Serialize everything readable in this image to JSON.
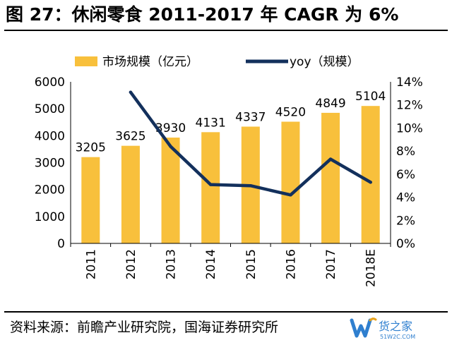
{
  "title": "图 27：休闲零食 2011-2017 年 CAGR 为 6%",
  "source": "资料来源：前瞻产业研究院，国海证券研究所",
  "watermark": {
    "brand": "货之家",
    "site": "51W2C.COM"
  },
  "colors": {
    "bar": "#F8C03C",
    "line": "#13305C",
    "text": "#000000",
    "watermark": "#2F7FCF",
    "watermark_accent": "#E8A21A"
  },
  "chart_data": {
    "type": "bar",
    "categories": [
      "2011",
      "2012",
      "2013",
      "2014",
      "2015",
      "2016",
      "2017",
      "2018E"
    ],
    "series": [
      {
        "name": "市场规模（亿元）",
        "type": "bar",
        "axis": "left",
        "values": [
          3205,
          3625,
          3930,
          4131,
          4337,
          4520,
          4849,
          5104
        ]
      },
      {
        "name": "yoy（规模）",
        "type": "line",
        "axis": "right",
        "values": [
          null,
          13.1,
          8.4,
          5.1,
          5.0,
          4.2,
          7.3,
          5.3
        ]
      }
    ],
    "data_labels": [
      "3205",
      "3625",
      "3930",
      "4131",
      "4337",
      "4520",
      "4849",
      "5104"
    ],
    "y_left": {
      "min": 0,
      "max": 6000,
      "ticks": [
        "0",
        "1000",
        "2000",
        "3000",
        "4000",
        "5000",
        "6000"
      ]
    },
    "y_right": {
      "min": 0,
      "max": 14,
      "ticks": [
        "0%",
        "2%",
        "4%",
        "6%",
        "8%",
        "10%",
        "12%",
        "14%"
      ]
    },
    "legend": {
      "position": "top",
      "entries": [
        "市场规模（亿元）",
        "yoy（规模）"
      ]
    },
    "grid": false
  }
}
